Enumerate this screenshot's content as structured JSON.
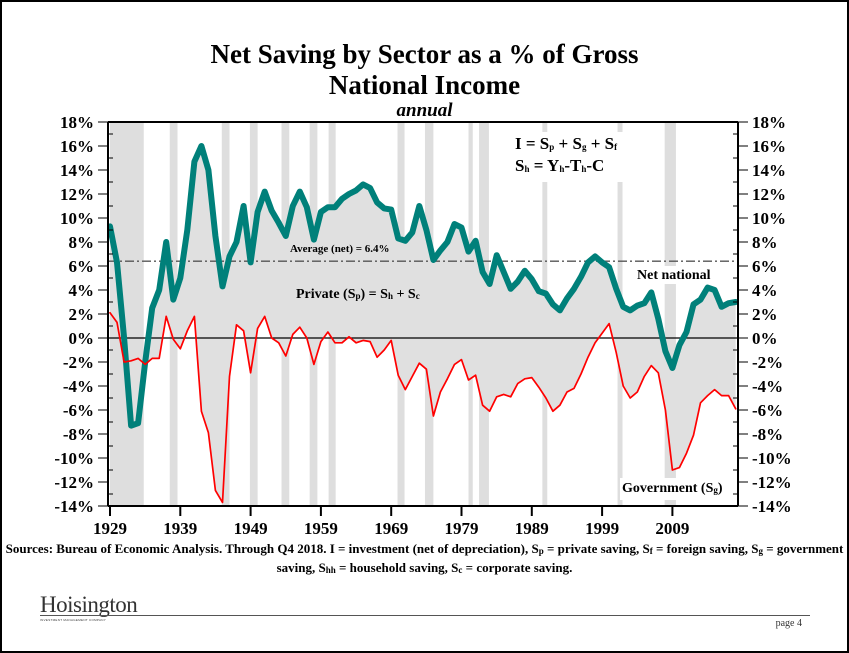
{
  "chart_data": {
    "type": "line",
    "title": "Net Saving by Sector as a % of Gross National Income",
    "title_lines": [
      "Net Saving by Sector as a % of Gross",
      "National Income"
    ],
    "subtitle": "annual",
    "xlabel": "",
    "ylabel": "",
    "ylim": [
      -14,
      18
    ],
    "yticks": [
      18,
      16,
      14,
      12,
      10,
      8,
      6,
      4,
      2,
      0,
      -2,
      -4,
      -6,
      -8,
      -10,
      -12,
      -14
    ],
    "ytick_labels": [
      "18%",
      "16%",
      "14%",
      "12%",
      "10%",
      "8%",
      "6%",
      "4%",
      "2%",
      "0%",
      "-2%",
      "-4%",
      "-6%",
      "-8%",
      "-10%",
      "-12%",
      "-14%"
    ],
    "xlim": [
      1929,
      2018.5
    ],
    "xticks": [
      1929,
      1939,
      1949,
      1959,
      1969,
      1979,
      1989,
      1999,
      2009
    ],
    "xtick_labels": [
      "1929",
      "1939",
      "1949",
      "1959",
      "1969",
      "1979",
      "1989",
      "1999",
      "2009"
    ],
    "grid": false,
    "x": [
      1929,
      1930,
      1931,
      1932,
      1933,
      1934,
      1935,
      1936,
      1937,
      1938,
      1939,
      1940,
      1941,
      1942,
      1943,
      1944,
      1945,
      1946,
      1947,
      1948,
      1949,
      1950,
      1951,
      1952,
      1953,
      1954,
      1955,
      1956,
      1957,
      1958,
      1959,
      1960,
      1961,
      1962,
      1963,
      1964,
      1965,
      1966,
      1967,
      1968,
      1969,
      1970,
      1971,
      1972,
      1973,
      1974,
      1975,
      1976,
      1977,
      1978,
      1979,
      1980,
      1981,
      1982,
      1983,
      1984,
      1985,
      1986,
      1987,
      1988,
      1989,
      1990,
      1991,
      1992,
      1993,
      1994,
      1995,
      1996,
      1997,
      1998,
      1999,
      2000,
      2001,
      2002,
      2003,
      2004,
      2005,
      2006,
      2007,
      2008,
      2009,
      2010,
      2011,
      2012,
      2013,
      2014,
      2015,
      2016,
      2017,
      2018
    ],
    "series": [
      {
        "name": "Net national",
        "color": "#00807a",
        "values": [
          9.3,
          6.3,
          0,
          -7.3,
          -7.1,
          -2,
          2.5,
          4,
          8,
          3.2,
          5,
          9,
          14.7,
          16,
          14,
          8.5,
          4.3,
          6.8,
          8,
          11,
          6.3,
          10.5,
          12.2,
          10.6,
          9.6,
          8.5,
          11,
          12.2,
          10.9,
          8.2,
          10.5,
          10.9,
          10.9,
          11.6,
          12,
          12.3,
          12.8,
          12.5,
          11.3,
          10.8,
          10.7,
          8.3,
          8.1,
          8.8,
          11,
          9,
          6.5,
          7.3,
          8,
          9.5,
          9.2,
          7.2,
          8.1,
          5.5,
          4.5,
          6.9,
          5.5,
          4.1,
          4.7,
          5.6,
          4.9,
          3.9,
          3.7,
          2.8,
          2.3,
          3.3,
          4.1,
          5.1,
          6.3,
          6.8,
          6.3,
          5.9,
          4.1,
          2.6,
          2.3,
          2.7,
          2.9,
          3.8,
          1.6,
          -1.1,
          -2.5,
          -0.6,
          0.5,
          2.8,
          3.2,
          4.2,
          4.0,
          2.6,
          2.9,
          3.0
        ]
      },
      {
        "name": "Government (Sg)",
        "color": "#ff0000",
        "values": [
          2.1,
          1.3,
          -2,
          -1.9,
          -1.7,
          -2.2,
          -1.7,
          -1.7,
          1.8,
          -0.1,
          -0.9,
          0.6,
          1.8,
          -6.1,
          -7.9,
          -12.7,
          -13.7,
          -3.2,
          1.1,
          0.6,
          -2.9,
          0.8,
          1.8,
          0,
          -0.4,
          -1.5,
          0.3,
          0.9,
          0,
          -2.2,
          -0.3,
          0.5,
          -0.4,
          -0.4,
          0.1,
          -0.4,
          -0.2,
          -0.3,
          -1.6,
          -1,
          -0.2,
          -3.1,
          -4.3,
          -3.2,
          -2.1,
          -2.6,
          -6.5,
          -4.5,
          -3.4,
          -2.2,
          -1.8,
          -3.5,
          -3.1,
          -5.6,
          -6.1,
          -4.9,
          -4.7,
          -4.9,
          -3.8,
          -3.4,
          -3.3,
          -4.1,
          -5,
          -6.1,
          -5.6,
          -4.5,
          -4.2,
          -3,
          -1.6,
          -0.4,
          0.4,
          1.2,
          -1.2,
          -4,
          -5,
          -4.5,
          -3.2,
          -2.3,
          -2.9,
          -6,
          -11,
          -10.8,
          -9.6,
          -8.1,
          -5.4,
          -4.8,
          -4.3,
          -4.8,
          -4.8,
          -5.9
        ]
      }
    ],
    "area_between_series": {
      "name": "Private (Sp) = Sh + Sc",
      "color": "#e0e0e0"
    },
    "average_line": {
      "label": "Average (net) = 6.4%",
      "value": 6.4,
      "color": "#555555"
    },
    "recession_bands": [
      [
        1929,
        1933.8
      ],
      [
        1937.5,
        1938.6
      ],
      [
        1944.9,
        1946
      ],
      [
        1948.9,
        1950
      ],
      [
        1953.4,
        1954.5
      ],
      [
        1957.4,
        1958.5
      ],
      [
        1960.1,
        1961.1
      ],
      [
        1969.9,
        1970.9
      ],
      [
        1973.8,
        1975
      ],
      [
        1980,
        1980.6
      ],
      [
        1981.5,
        1982.9
      ],
      [
        1990.5,
        1991.2
      ],
      [
        2001.2,
        2001.9
      ],
      [
        2007.9,
        2009.5
      ]
    ],
    "recession_color": "#dedede",
    "annotations": {
      "formula_1": "I = S<sub>p</sub> + S<sub>g</sub> + S<sub>f</sub>",
      "formula_2": "S<sub>h</sub> = Y<sub>h</sub>-T<sub>h</sub>-C",
      "private_label": "Private (S<sub>p</sub>) = S<sub>h</sub> + S<sub>c</sub>",
      "net_label": "Net national",
      "gov_label": "Government (S<sub>g</sub>)",
      "avg_label": "Average (net) = 6.4%"
    },
    "legend": "none (inline labels)"
  },
  "footer": {
    "source": "Sources: Bureau of Economic Analysis. Through Q4 2018. I = investment (net of depreciation), S<sub>p</sub> = private saving, S<sub>f</sub> = foreign saving, S<sub>g</sub> = government saving, S<sub>hh</sub> = household saving, S<sub>c</sub> = corporate saving.",
    "logo_text": "Hoisington",
    "logo_subtext": "INVESTMENT MANAGEMENT COMPANY",
    "page_label": "page 4"
  }
}
